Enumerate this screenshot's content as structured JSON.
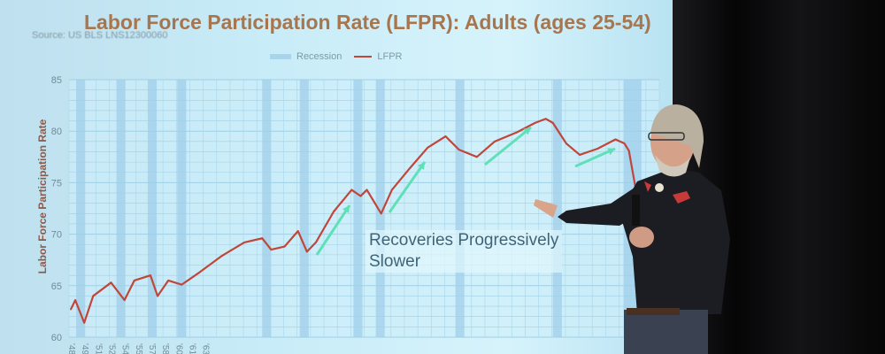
{
  "chart_data": {
    "type": "line",
    "title": "Labor Force Participation Rate (LFPR):  Adults (ages 25-54)",
    "source": "Source: US BLS LNS12300060",
    "ylabel": "Labor Force Participation Rate",
    "xlabel": "",
    "ylim": [
      60,
      85
    ],
    "yticks": [
      60,
      65,
      70,
      75,
      80,
      85
    ],
    "xlim": [
      1948,
      2014
    ],
    "xticks": [
      "'48",
      "'49",
      "'51",
      "'52",
      "'54",
      "'55",
      "'57",
      "'58",
      "'60",
      "'61",
      "'63"
    ],
    "grid": true,
    "legend": {
      "placement": "top-center",
      "entries": [
        "Recession",
        "LFPR"
      ]
    },
    "colors": {
      "lfpr": "#c0463a",
      "recession": "#8fc3e6",
      "arrows": "#5fe0b8",
      "title": "#a7764f"
    },
    "series": [
      {
        "name": "LFPR",
        "x": [
          1948.2,
          1948.7,
          1949.7,
          1950.7,
          1952.7,
          1954.2,
          1955.3,
          1957.1,
          1957.9,
          1959.1,
          1960.6,
          1962.6,
          1965.1,
          1967.6,
          1969.6,
          1970.6,
          1972.1,
          1973.6,
          1974.6,
          1975.6,
          1977.6,
          1979.6,
          1980.6,
          1981.3,
          1982.9,
          1984.1,
          1986.1,
          1988.1,
          1990.1,
          1991.6,
          1993.6,
          1995.6,
          1998.1,
          2000.1,
          2001.3,
          2002.1,
          2003.6,
          2005.1,
          2007.1,
          2009.1,
          2010.1,
          2010.6,
          2011.3
        ],
        "y": [
          62.7,
          63.6,
          61.4,
          64.0,
          65.3,
          63.6,
          65.5,
          66.0,
          64.0,
          65.5,
          65.1,
          66.3,
          67.9,
          69.2,
          69.6,
          68.5,
          68.8,
          70.3,
          68.3,
          69.2,
          72.2,
          74.3,
          73.7,
          74.3,
          72.0,
          74.3,
          76.4,
          78.4,
          79.5,
          78.2,
          77.5,
          79.0,
          79.9,
          80.8,
          81.2,
          80.8,
          78.8,
          77.7,
          78.3,
          79.2,
          78.8,
          78.1,
          74.7
        ]
      }
    ],
    "recessions": [
      [
        1948.8,
        1949.8
      ],
      [
        1953.3,
        1954.3
      ],
      [
        1956.8,
        1957.8
      ],
      [
        1960.1,
        1961.1
      ],
      [
        1969.6,
        1970.6
      ],
      [
        1973.8,
        1974.8
      ],
      [
        1979.8,
        1980.8
      ],
      [
        1982.3,
        1983.3
      ],
      [
        1991.2,
        1992.2
      ],
      [
        2002.1,
        2003.1
      ],
      [
        2010.0,
        2012.0
      ]
    ],
    "annotation": {
      "line1": "Recoveries Progressively",
      "line2": "Slower"
    }
  }
}
